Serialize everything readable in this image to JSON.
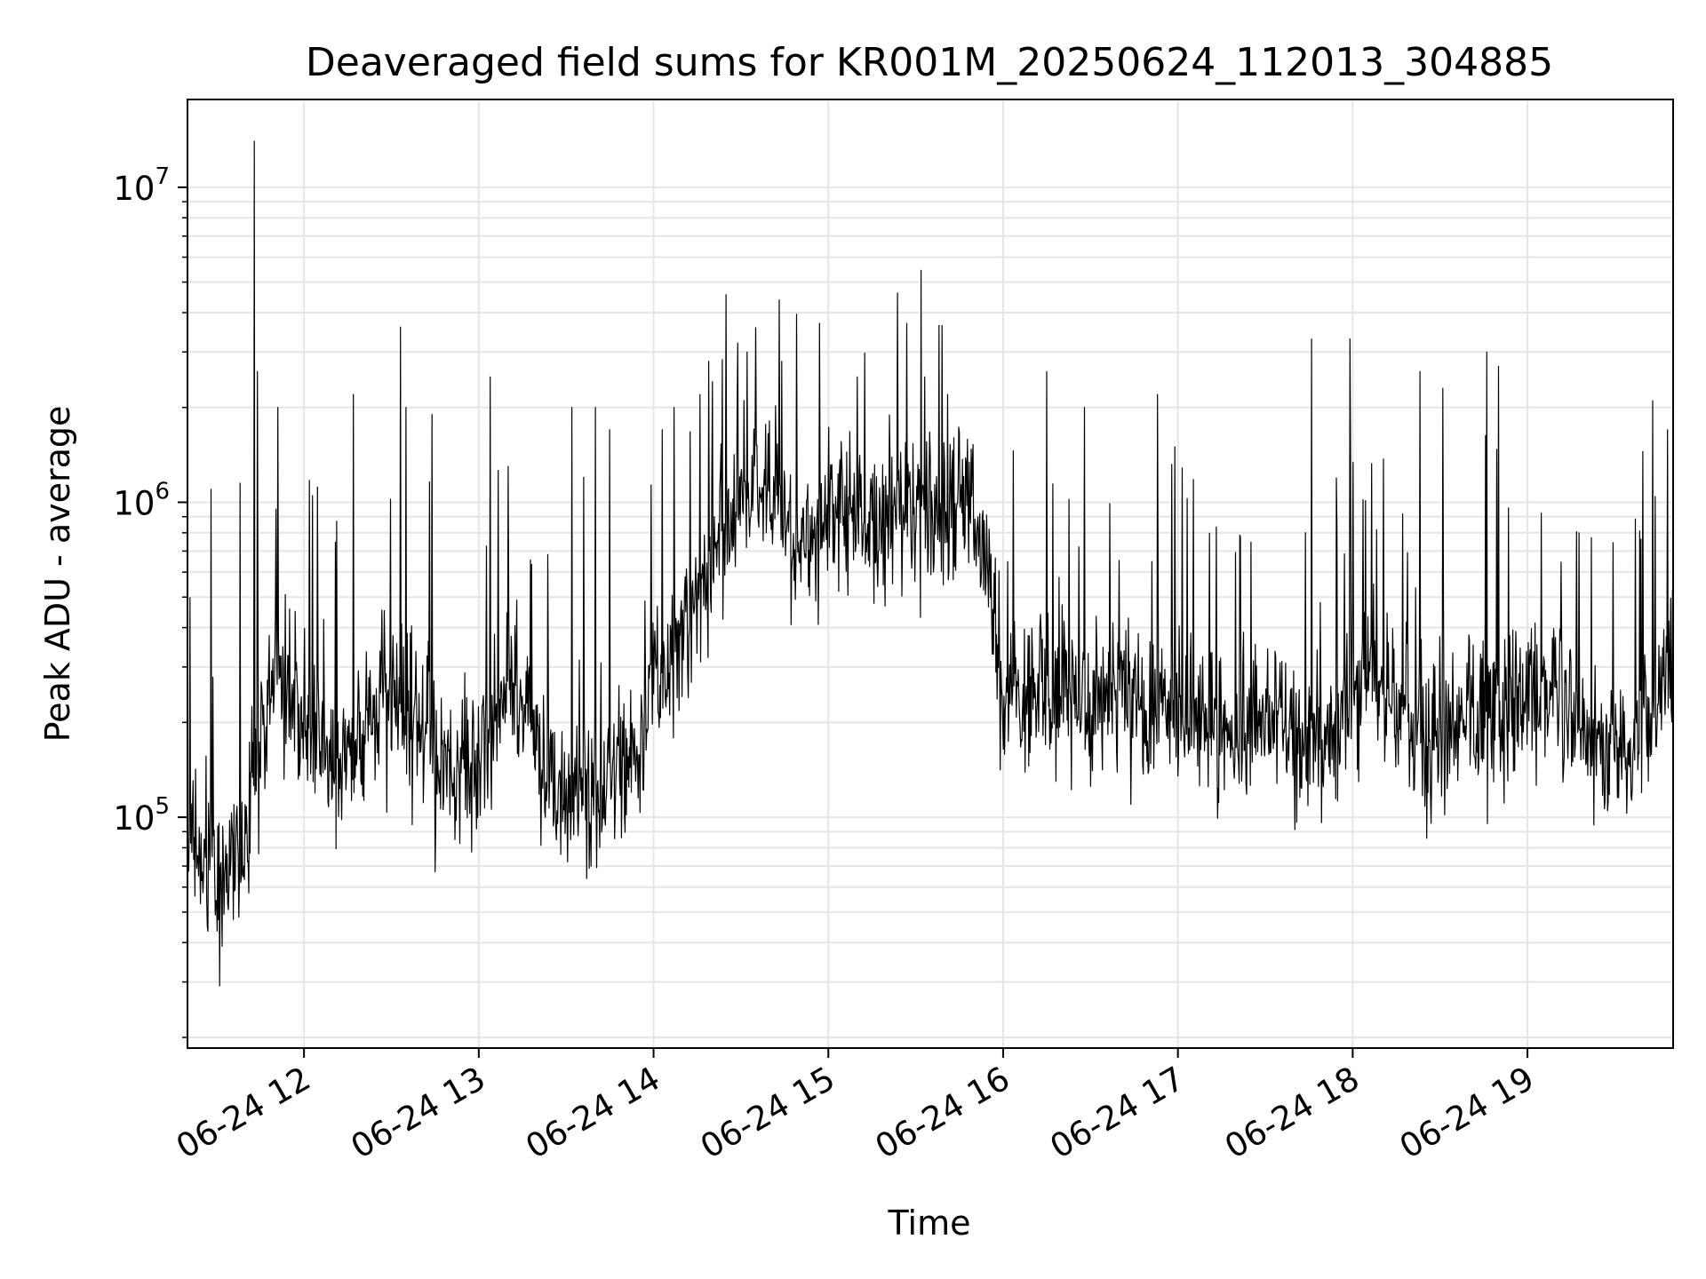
{
  "chart_data": {
    "type": "line",
    "title": "Deaveraged field sums for KR001M_20250624_112013_304885",
    "xlabel": "Time",
    "ylabel": "Peak ADU - average",
    "yscale": "log",
    "ylim": [
      18500,
      19000000
    ],
    "xlim": [
      "2025-06-24 11:20",
      "2025-06-24 19:50"
    ],
    "grid": true,
    "line_color": "#000000",
    "x_ticks": [
      {
        "x": "2025-06-24 12:00",
        "label": "06-24 12"
      },
      {
        "x": "2025-06-24 13:00",
        "label": "06-24 13"
      },
      {
        "x": "2025-06-24 14:00",
        "label": "06-24 14"
      },
      {
        "x": "2025-06-24 15:00",
        "label": "06-24 15"
      },
      {
        "x": "2025-06-24 16:00",
        "label": "06-24 16"
      },
      {
        "x": "2025-06-24 17:00",
        "label": "06-24 17"
      },
      {
        "x": "2025-06-24 18:00",
        "label": "06-24 18"
      },
      {
        "x": "2025-06-24 19:00",
        "label": "06-24 19"
      }
    ],
    "y_ticks": [
      {
        "value": 100000,
        "base": "10",
        "exp": "5"
      },
      {
        "value": 1000000,
        "base": "10",
        "exp": "6"
      },
      {
        "value": 10000000,
        "base": "10",
        "exp": "7"
      }
    ],
    "series": [
      {
        "x": [
          "2025-06-24 11:20",
          "2025-06-24 11:30",
          "2025-06-24 11:40",
          "2025-06-24 11:50",
          "2025-06-24 12:00",
          "2025-06-24 12:10",
          "2025-06-24 12:20",
          "2025-06-24 12:30",
          "2025-06-24 12:40",
          "2025-06-24 12:50",
          "2025-06-24 13:00",
          "2025-06-24 13:10",
          "2025-06-24 13:20",
          "2025-06-24 13:30",
          "2025-06-24 13:40",
          "2025-06-24 13:50",
          "2025-06-24 14:00",
          "2025-06-24 14:10",
          "2025-06-24 14:20",
          "2025-06-24 14:30",
          "2025-06-24 14:40",
          "2025-06-24 14:50",
          "2025-06-24 15:00",
          "2025-06-24 15:10",
          "2025-06-24 15:20",
          "2025-06-24 15:30",
          "2025-06-24 15:40",
          "2025-06-24 15:50",
          "2025-06-24 16:00",
          "2025-06-24 16:10",
          "2025-06-24 16:20",
          "2025-06-24 16:30",
          "2025-06-24 16:40",
          "2025-06-24 16:50",
          "2025-06-24 17:00",
          "2025-06-24 17:10",
          "2025-06-24 17:20",
          "2025-06-24 17:30",
          "2025-06-24 17:40",
          "2025-06-24 17:50",
          "2025-06-24 18:00",
          "2025-06-24 18:10",
          "2025-06-24 18:20",
          "2025-06-24 18:30",
          "2025-06-24 18:40",
          "2025-06-24 18:50",
          "2025-06-24 19:00",
          "2025-06-24 19:10",
          "2025-06-24 19:20",
          "2025-06-24 19:30",
          "2025-06-24 19:40",
          "2025-06-24 19:50"
        ],
        "values": [
          90000,
          55000,
          100000,
          300000,
          200000,
          150000,
          180000,
          250000,
          200000,
          150000,
          150000,
          300000,
          160000,
          110000,
          120000,
          150000,
          250000,
          350000,
          700000,
          1000000,
          1200000,
          700000,
          1000000,
          800000,
          900000,
          1000000,
          900000,
          1100000,
          250000,
          250000,
          280000,
          220000,
          250000,
          200000,
          220000,
          200000,
          200000,
          200000,
          180000,
          160000,
          250000,
          250000,
          200000,
          180000,
          220000,
          200000,
          240000,
          250000,
          180000,
          160000,
          180000,
          350000
        ],
        "spikes": [
          {
            "x": "2025-06-24 11:28",
            "value": 1100000
          },
          {
            "x": "2025-06-24 11:38",
            "value": 1150000
          },
          {
            "x": "2025-06-24 11:43",
            "value": 14000000
          },
          {
            "x": "2025-06-24 11:44",
            "value": 2600000
          },
          {
            "x": "2025-06-24 11:51",
            "value": 2000000
          },
          {
            "x": "2025-06-24 12:03",
            "value": 1050000
          },
          {
            "x": "2025-06-24 12:17",
            "value": 2200000
          },
          {
            "x": "2025-06-24 12:33",
            "value": 3600000
          },
          {
            "x": "2025-06-24 12:35",
            "value": 2000000
          },
          {
            "x": "2025-06-24 12:44",
            "value": 1900000
          },
          {
            "x": "2025-06-24 13:04",
            "value": 2500000
          },
          {
            "x": "2025-06-24 13:10",
            "value": 1300000
          },
          {
            "x": "2025-06-24 13:32",
            "value": 2000000
          },
          {
            "x": "2025-06-24 13:36",
            "value": 1200000
          },
          {
            "x": "2025-06-24 13:40",
            "value": 2000000
          },
          {
            "x": "2025-06-24 13:45",
            "value": 1700000
          },
          {
            "x": "2025-06-24 14:03",
            "value": 1700000
          },
          {
            "x": "2025-06-24 14:07",
            "value": 2000000
          },
          {
            "x": "2025-06-24 14:16",
            "value": 2200000
          },
          {
            "x": "2025-06-24 14:19",
            "value": 2800000
          },
          {
            "x": "2025-06-24 14:29",
            "value": 3200000
          },
          {
            "x": "2025-06-24 14:32",
            "value": 3000000
          },
          {
            "x": "2025-06-24 14:44",
            "value": 2800000
          },
          {
            "x": "2025-06-24 14:57",
            "value": 3700000
          },
          {
            "x": "2025-06-24 15:10",
            "value": 2500000
          },
          {
            "x": "2025-06-24 15:27",
            "value": 3700000
          },
          {
            "x": "2025-06-24 15:33",
            "value": 2500000
          },
          {
            "x": "2025-06-24 15:41",
            "value": 2200000
          },
          {
            "x": "2025-06-24 16:15",
            "value": 2600000
          },
          {
            "x": "2025-06-24 16:28",
            "value": 2000000
          },
          {
            "x": "2025-06-24 16:53",
            "value": 2200000
          },
          {
            "x": "2025-06-24 16:59",
            "value": 1500000
          },
          {
            "x": "2025-06-24 17:46",
            "value": 3300000
          },
          {
            "x": "2025-06-24 17:59",
            "value": 3300000
          },
          {
            "x": "2025-06-24 18:23",
            "value": 2600000
          },
          {
            "x": "2025-06-24 18:31",
            "value": 2300000
          },
          {
            "x": "2025-06-24 18:46",
            "value": 3000000
          },
          {
            "x": "2025-06-24 18:50",
            "value": 2700000
          },
          {
            "x": "2025-06-24 19:43",
            "value": 2100000
          },
          {
            "x": "2025-06-24 19:48",
            "value": 1700000
          }
        ]
      }
    ]
  }
}
